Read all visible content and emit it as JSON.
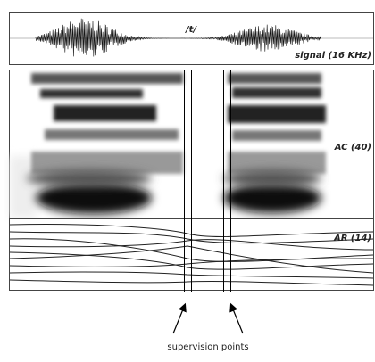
{
  "figure": {
    "phoneme": "/t/",
    "signal_label": "signal (16 KHz)",
    "ac_label": "AC (40)",
    "ar_label": "AR (14)",
    "annotation": "supervision points"
  }
}
